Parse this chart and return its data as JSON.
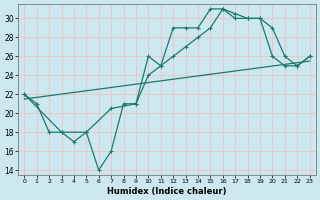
{
  "xlabel": "Humidex (Indice chaleur)",
  "bg_color": "#cce8ee",
  "grid_color": "#e8c8c8",
  "line_color": "#1a7a6e",
  "xlim": [
    -0.5,
    23.5
  ],
  "ylim": [
    13.5,
    31.5
  ],
  "yticks": [
    14,
    16,
    18,
    20,
    22,
    24,
    26,
    28,
    30
  ],
  "xticks": [
    0,
    1,
    2,
    3,
    4,
    5,
    6,
    7,
    8,
    9,
    10,
    11,
    12,
    13,
    14,
    15,
    16,
    17,
    18,
    19,
    20,
    21,
    22,
    23
  ],
  "line1_x": [
    0,
    1,
    2,
    3,
    4,
    5,
    6,
    7,
    8,
    9,
    10,
    11,
    12,
    13,
    14,
    15,
    16,
    17,
    18,
    19,
    20,
    21,
    22,
    23
  ],
  "line1_y": [
    22,
    21,
    18,
    18,
    17,
    18,
    14,
    16,
    21,
    21,
    26,
    25,
    29,
    29,
    29,
    31,
    31,
    30,
    30,
    30,
    26,
    25,
    25,
    26
  ],
  "line2_x": [
    0,
    3,
    5,
    7,
    9,
    10,
    11,
    12,
    13,
    14,
    15,
    16,
    17,
    18,
    19,
    20,
    21,
    22,
    23
  ],
  "line2_y": [
    22,
    18,
    18,
    20.5,
    21,
    24,
    25,
    26,
    27,
    28,
    29,
    31,
    30.5,
    30,
    30,
    29,
    26,
    25,
    26
  ],
  "line3_x": [
    0,
    23
  ],
  "line3_y": [
    21.5,
    25.5
  ]
}
